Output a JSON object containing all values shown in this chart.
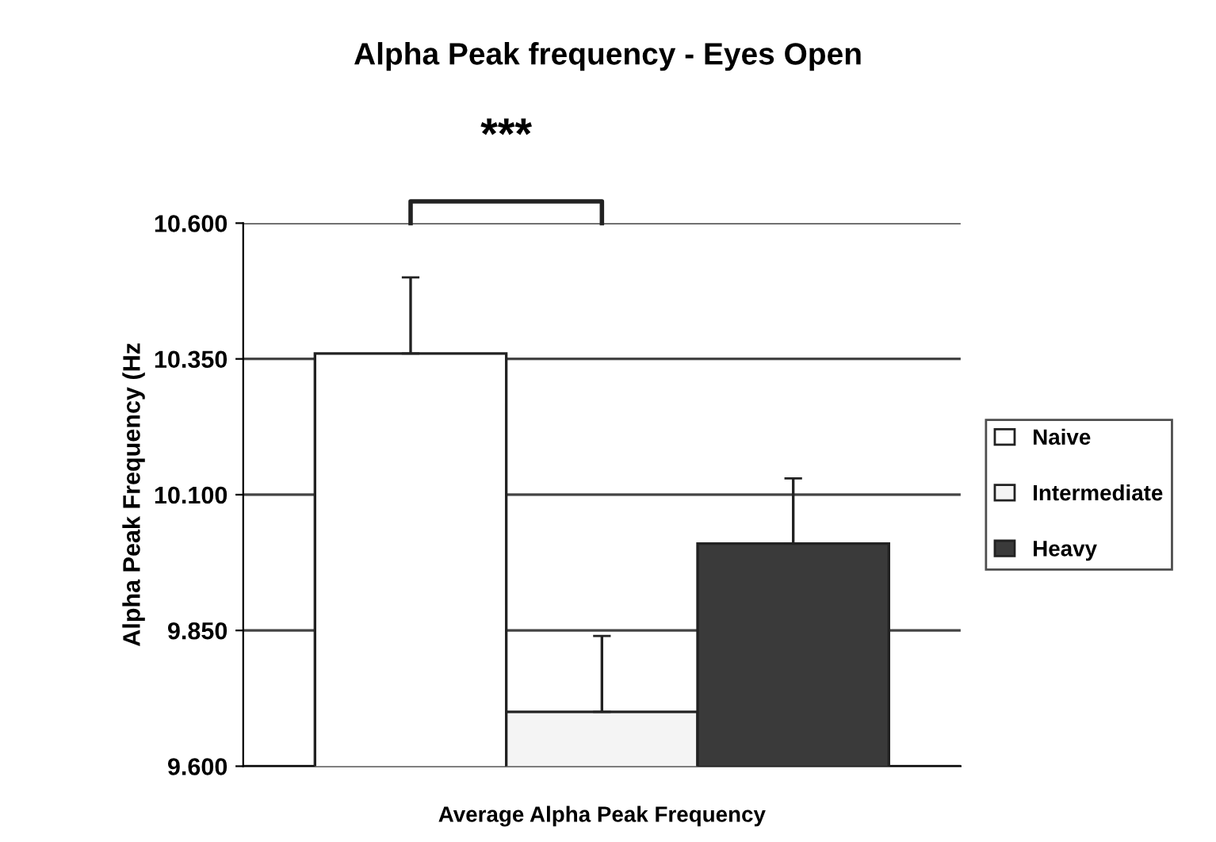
{
  "chart_data": {
    "type": "bar",
    "title": "Alpha Peak frequency - Eyes Open",
    "ylabel": "Alpha Peak Frequency (Hz",
    "categories": [
      "Average Alpha Peak Frequency"
    ],
    "series": [
      {
        "name": "Naive",
        "color": "#ffffff",
        "values": [
          10.36
        ],
        "errors": [
          0.14
        ]
      },
      {
        "name": "Intermediate",
        "color": "#f4f4f4",
        "values": [
          9.7
        ],
        "errors": [
          0.14
        ]
      },
      {
        "name": "Heavy",
        "color": "#3a3a3a",
        "values": [
          10.01
        ],
        "errors": [
          0.12
        ]
      }
    ],
    "ylim": [
      9.6,
      10.6
    ],
    "yticks": [
      {
        "value": 9.6,
        "label": "9.600"
      },
      {
        "value": 9.85,
        "label": "9.850"
      },
      {
        "value": 10.1,
        "label": "10.100"
      },
      {
        "value": 10.35,
        "label": "10.350"
      },
      {
        "value": 10.6,
        "label": "10.600"
      }
    ],
    "grid": "y",
    "legend": "right",
    "annotations": [
      "***"
    ]
  }
}
